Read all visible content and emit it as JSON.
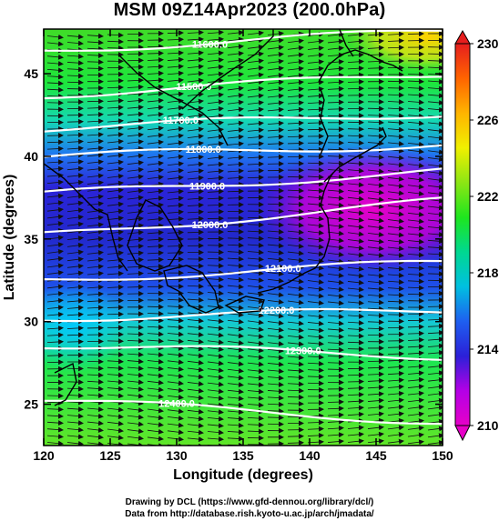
{
  "title": "MSM 09Z14Apr2023 (200.0hPa)",
  "x_axis": {
    "label": "Longitude (degrees)",
    "range": [
      120,
      150
    ],
    "ticks": [
      "120",
      "125",
      "130",
      "135",
      "140",
      "145",
      "150"
    ]
  },
  "y_axis": {
    "label": "Latitude  (degrees)",
    "range": [
      22.5,
      47.7
    ],
    "ticks": [
      "25",
      "30",
      "35",
      "40",
      "45"
    ]
  },
  "colorbar": {
    "min": 210,
    "max": 230,
    "ticks": [
      "210",
      "214",
      "218",
      "222",
      "226",
      "230"
    ],
    "stops": [
      "#e600c8",
      "#b400e6",
      "#2b20d8",
      "#1e5ff0",
      "#00c0e0",
      "#00d890",
      "#1ee61e",
      "#8ce614",
      "#f0f000",
      "#ffb400",
      "#ff6400",
      "#e61e1e"
    ]
  },
  "contours": [
    {
      "label": "11600.0",
      "lat_west": 46.4,
      "lat_east": 47.6,
      "label_lon": 132.5
    },
    {
      "label": "11500.0",
      "lat_west": 43.7,
      "lat_east": 45.0,
      "label_lon": 131.3
    },
    {
      "label": "11700.0",
      "lat_west": 41.7,
      "lat_east": 42.6,
      "label_lon": 130.3
    },
    {
      "label": "11800.0",
      "lat_west": 40.0,
      "lat_east": 40.7,
      "label_lon": 132.0
    },
    {
      "label": "11900.0",
      "lat_west": 37.7,
      "lat_east": 39.1,
      "label_lon": 132.3
    },
    {
      "label": "12000.0",
      "lat_west": 35.2,
      "lat_east": 37.3,
      "label_lon": 132.5
    },
    {
      "label": "12100.0",
      "lat_west": 32.5,
      "lat_east": 33.6,
      "label_lon": 138.0
    },
    {
      "label": "12200.0",
      "lat_west": 30.2,
      "lat_east": 30.7,
      "label_lon": 137.5
    },
    {
      "label": "12300.0",
      "lat_west": 28.6,
      "lat_east": 27.9,
      "label_lon": 139.5
    },
    {
      "label": "12400.0",
      "lat_west": 25.3,
      "lat_east": 23.9,
      "label_lon": 130.0
    }
  ],
  "credits": {
    "line1": "Drawing by DCL (https://www.gfd-dennou.org/library/dcl/)",
    "line2": "Data from http://database.rish.kyoto-u.ac.jp/arch/jmadata/"
  }
}
